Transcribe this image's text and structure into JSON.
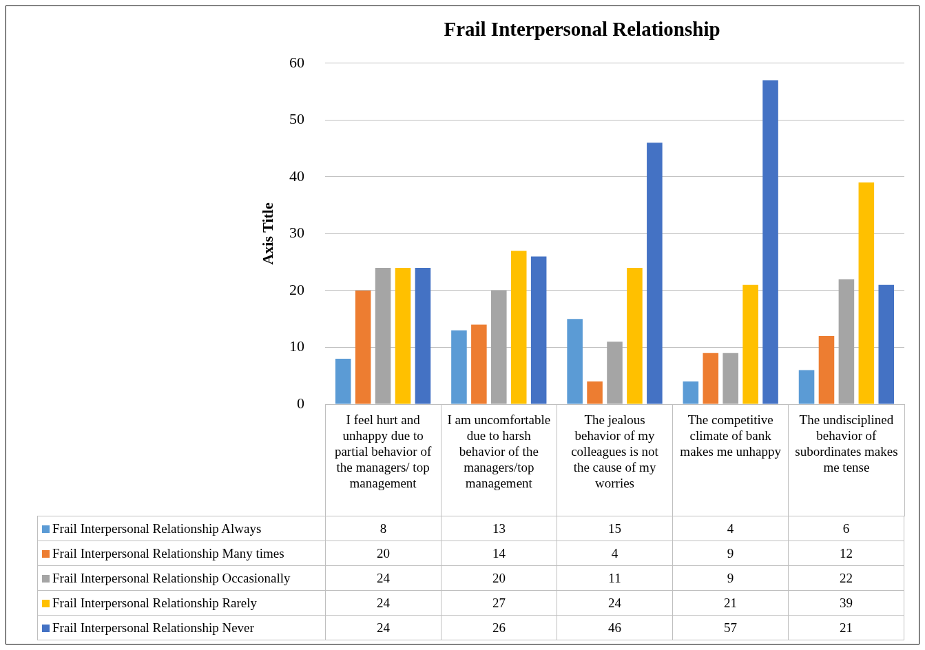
{
  "chart_data": {
    "type": "bar",
    "title": "Frail Interpersonal Relationship",
    "ylabel": "Axis Title",
    "categories": [
      "I feel hurt and unhappy due to partial behavior of the managers/ top management",
      "I am uncomfortable due to harsh behavior of the managers/top management",
      "The jealous behavior of my colleagues is not the cause of my worries",
      "The competitive climate of bank makes me unhappy",
      "The undisciplined behavior of subordinates makes me tense"
    ],
    "series": [
      {
        "name": "Frail Interpersonal Relationship Always",
        "color": "#5b9bd5",
        "values": [
          8,
          13,
          15,
          4,
          6
        ]
      },
      {
        "name": "Frail Interpersonal Relationship Many times",
        "color": "#ed7d31",
        "values": [
          20,
          14,
          4,
          9,
          12
        ]
      },
      {
        "name": "Frail Interpersonal Relationship Occasionally",
        "color": "#a5a5a5",
        "values": [
          24,
          20,
          11,
          9,
          22
        ]
      },
      {
        "name": "Frail Interpersonal Relationship Rarely",
        "color": "#ffc000",
        "values": [
          24,
          27,
          24,
          21,
          39
        ]
      },
      {
        "name": "Frail Interpersonal Relationship Never",
        "color": "#4472c4",
        "values": [
          24,
          26,
          46,
          57,
          21
        ]
      }
    ],
    "ylim": [
      0,
      60
    ],
    "yticks": [
      0,
      10,
      20,
      30,
      40,
      50,
      60
    ],
    "grid": "y",
    "legend": "bottom",
    "data_labels": true
  }
}
